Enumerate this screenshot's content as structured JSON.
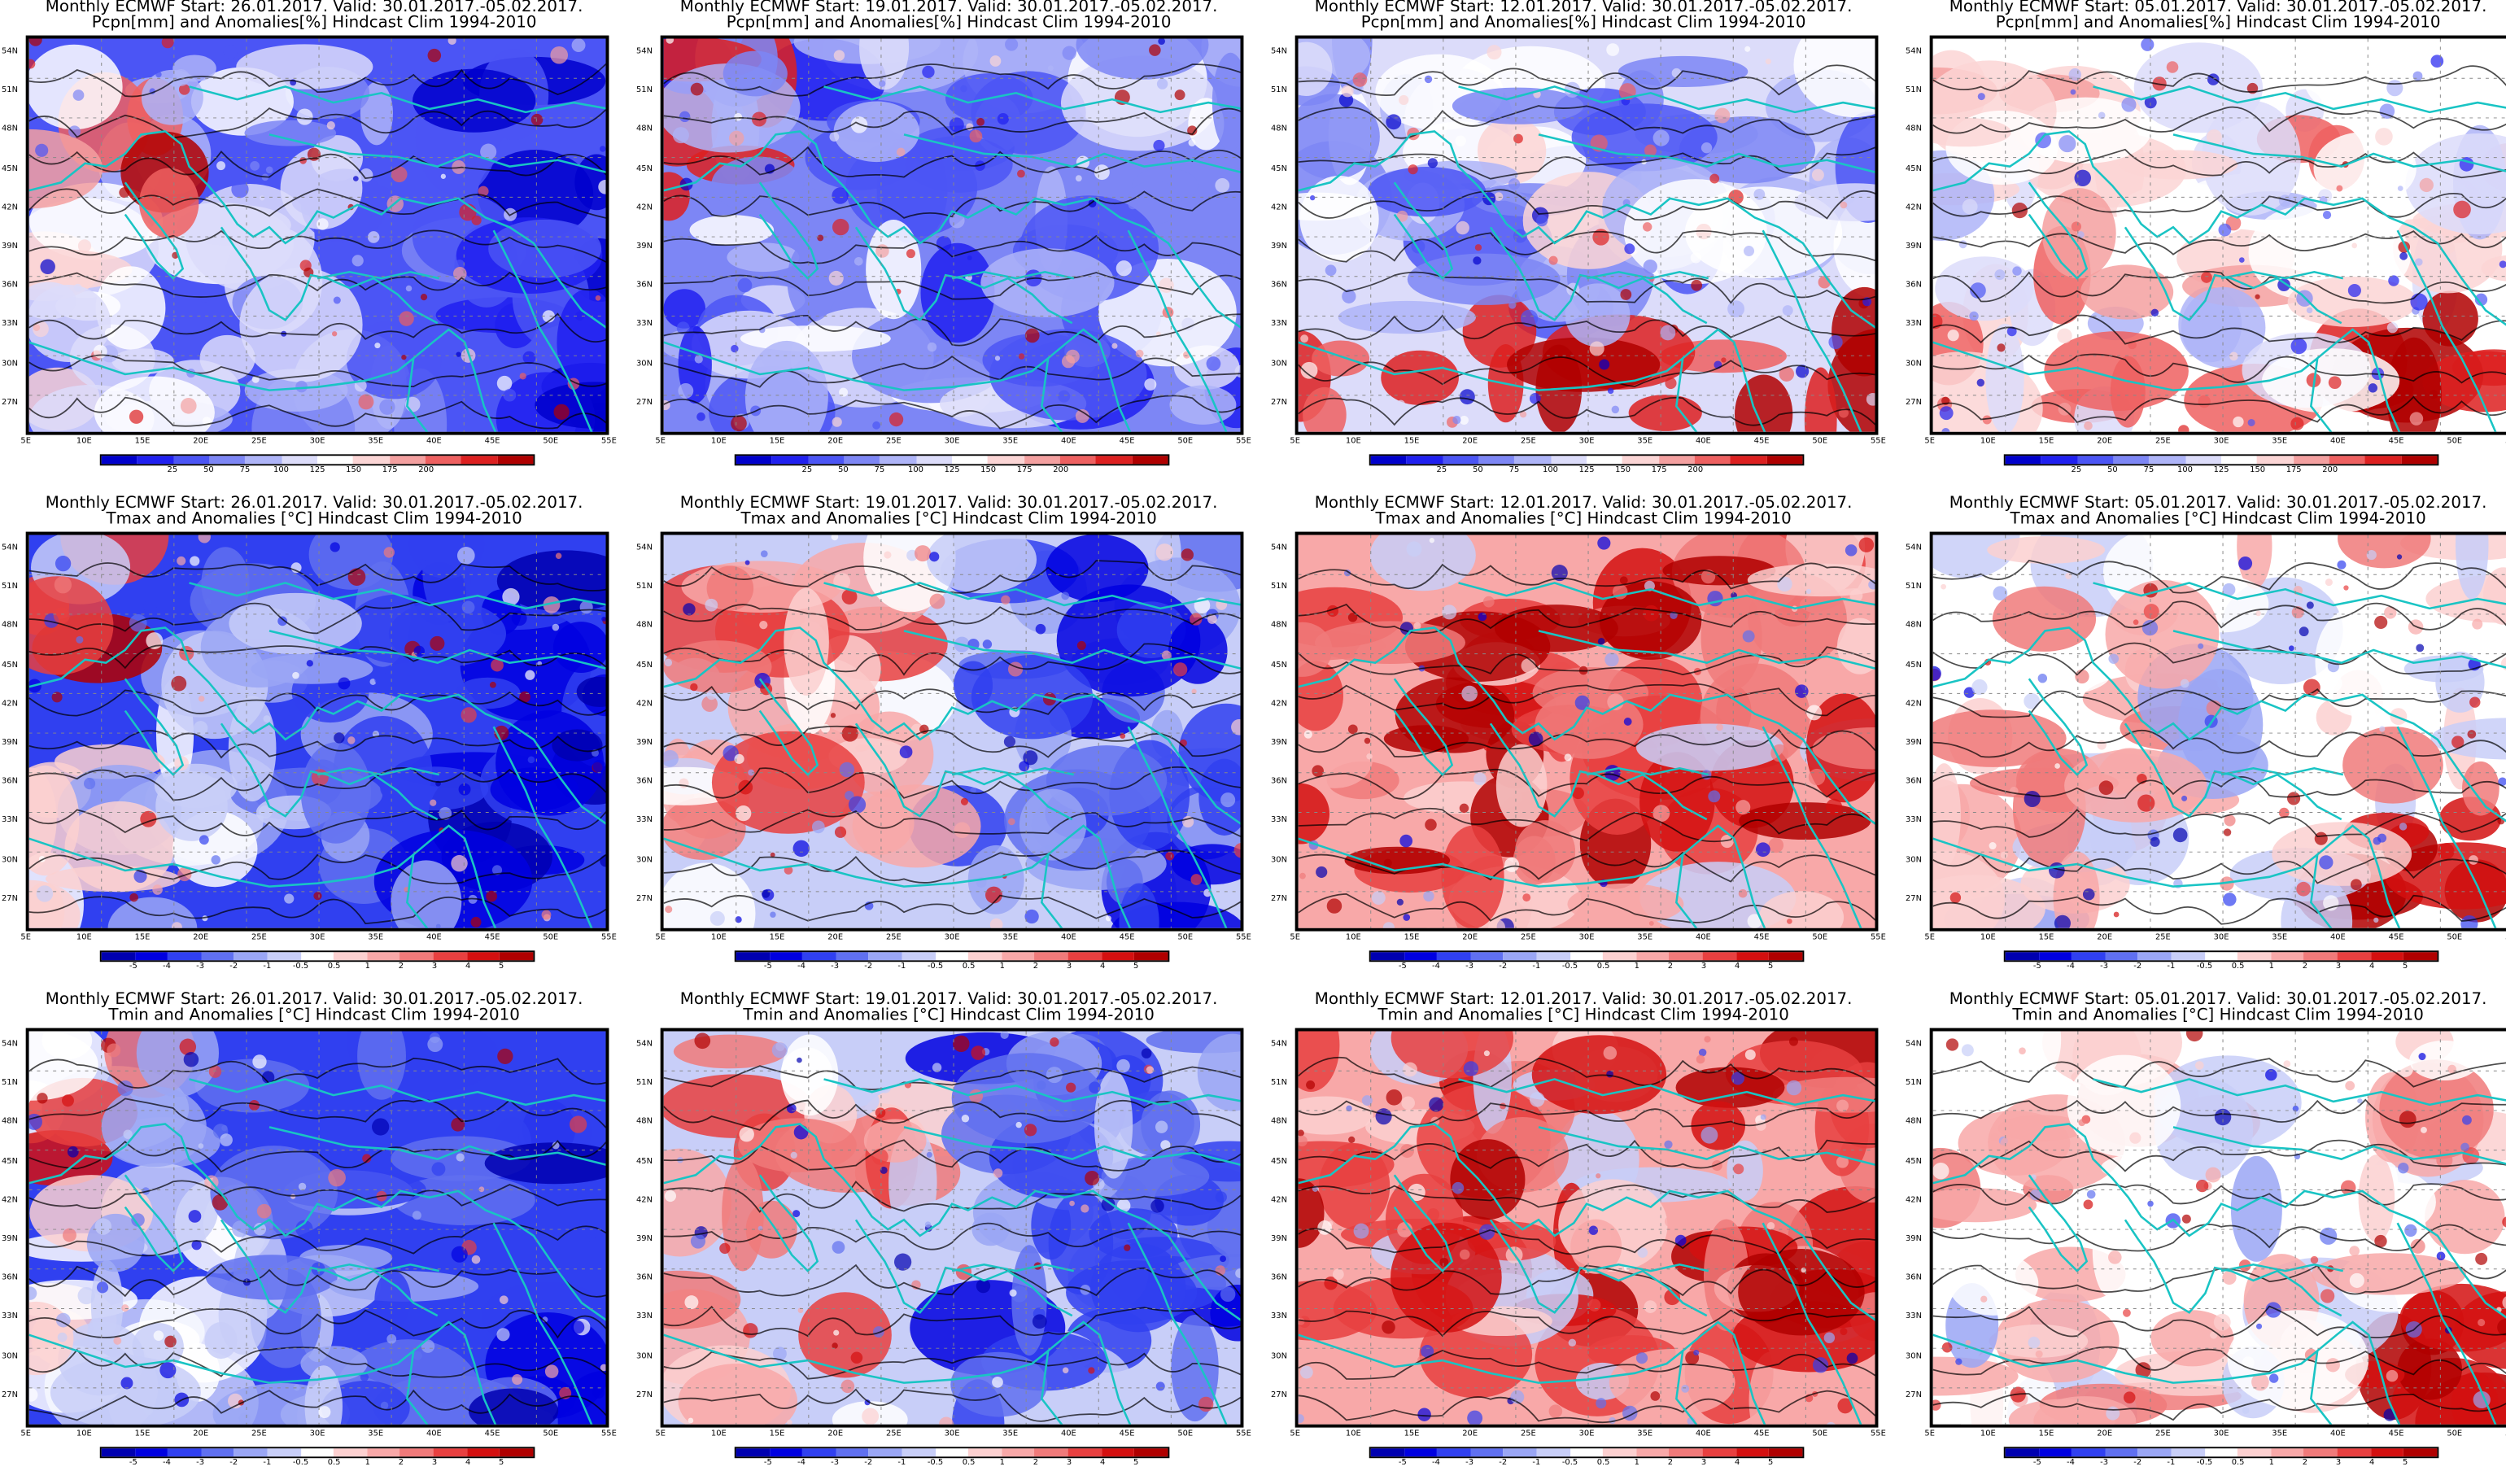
{
  "figure": {
    "columns": [
      {
        "title_line1": "Monthly ECMWF Start: 26.01.2017. Valid: 30.01.2017.-05.02.2017."
      },
      {
        "title_line1": "Monthly ECMWF Start: 19.01.2017. Valid: 30.01.2017.-05.02.2017."
      },
      {
        "title_line1": "Monthly ECMWF Start: 12.01.2017. Valid: 30.01.2017.-05.02.2017."
      },
      {
        "title_line1": "Monthly ECMWF Start: 05.01.2017. Valid: 30.01.2017.-05.02.2017."
      }
    ],
    "rows": [
      {
        "variable": "precipitation",
        "title_line2": "Pcpn[mm] and Anomalies[%] Hindcast Clim 1994-2010",
        "colorbar_labels": [
          "25",
          "50",
          "75",
          "100",
          "125",
          "150",
          "175",
          "200"
        ],
        "colorbar_colors": [
          "#0000cc",
          "#2020f0",
          "#4b55f5",
          "#7d86f5",
          "#aeb4f8",
          "#dcdcfa",
          "#ffffff",
          "#fbd5d5",
          "#f4a0a0",
          "#ee6060",
          "#dd2020",
          "#b00000"
        ],
        "panel_dominant": [
          "wet-deficit",
          "deficit",
          "mixed",
          "near-normal"
        ]
      },
      {
        "variable": "tmax",
        "title_line2": "Tmax and Anomalies [°C] Hindcast Clim 1994-2010",
        "colorbar_labels": [
          "-5",
          "-4",
          "-3",
          "-2",
          "-1",
          "-0.5",
          "0.5",
          "1",
          "2",
          "3",
          "4",
          "5"
        ],
        "colorbar_colors": [
          "#0000b0",
          "#0000e0",
          "#3040f0",
          "#6070f0",
          "#9aa6f5",
          "#c8cef8",
          "#ffffff",
          "#fcd0d0",
          "#f8a8a8",
          "#f07a7a",
          "#e84040",
          "#d41010",
          "#b00000"
        ],
        "panel_dominant": [
          "cold",
          "mixed-cold",
          "warm",
          "near-normal"
        ]
      },
      {
        "variable": "tmin",
        "title_line2": "Tmin and Anomalies [°C] Hindcast Clim 1994-2010",
        "colorbar_labels": [
          "-5",
          "-4",
          "-3",
          "-2",
          "-1",
          "-0.5",
          "0.5",
          "1",
          "2",
          "3",
          "4",
          "5"
        ],
        "colorbar_colors": [
          "#0000b0",
          "#0000e0",
          "#3040f0",
          "#6070f0",
          "#9aa6f5",
          "#c8cef8",
          "#ffffff",
          "#fcd0d0",
          "#f8a8a8",
          "#f07a7a",
          "#e84040",
          "#d41010",
          "#b00000"
        ],
        "panel_dominant": [
          "cold",
          "mixed-cold",
          "warm",
          "near-normal"
        ]
      }
    ],
    "lat_labels": [
      "54N",
      "51N",
      "48N",
      "45N",
      "42N",
      "39N",
      "36N",
      "33N",
      "30N",
      "27N"
    ],
    "lon_labels": [
      "5E",
      "10E",
      "15E",
      "20E",
      "25E",
      "30E",
      "35E",
      "40E",
      "45E",
      "50E",
      "55E"
    ],
    "border_color": "#19c4c4",
    "contour_color": "#000000"
  }
}
